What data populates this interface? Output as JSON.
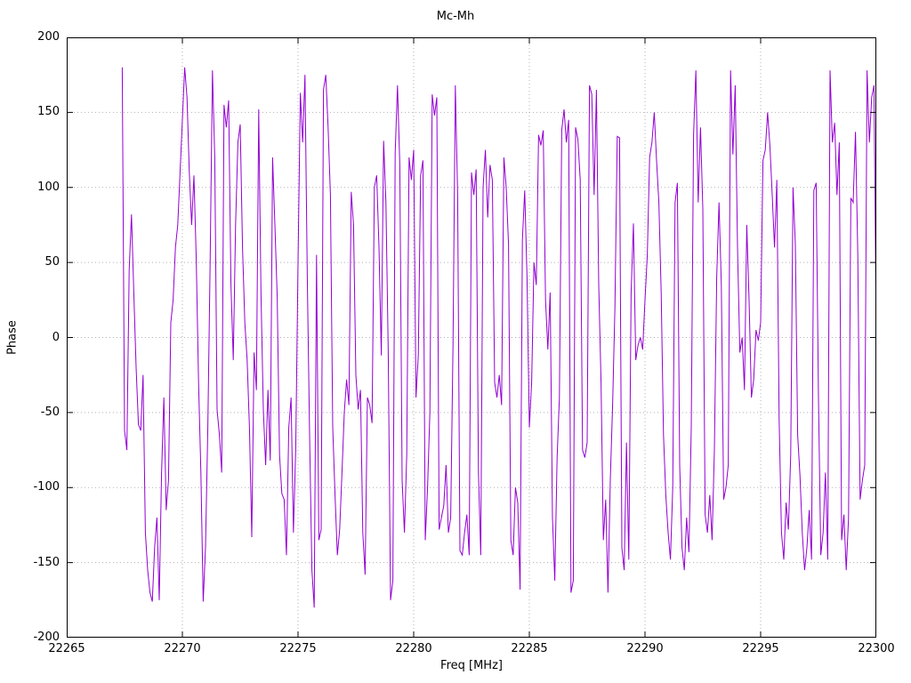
{
  "chart_data": {
    "type": "line",
    "title": "Mc-Mh",
    "xlabel": "Freq [MHz]",
    "ylabel": "Phase",
    "xlim": [
      22265,
      22300
    ],
    "ylim": [
      -200,
      200
    ],
    "x_ticks": [
      22265,
      22270,
      22275,
      22280,
      22285,
      22290,
      22295,
      22300
    ],
    "y_ticks": [
      -200,
      -150,
      -100,
      -50,
      0,
      50,
      100,
      150,
      200
    ],
    "grid": "dotted",
    "legend_position": "none",
    "line_color": "#9400d3",
    "background_color": "#ffffff",
    "series": [
      {
        "name": "Mc-Mh phase",
        "x_start": 22267.4,
        "x_step": 0.1,
        "phase_deg": [
          180,
          -62,
          -75,
          45,
          82,
          30,
          -20,
          -58,
          -62,
          -25,
          -130,
          -155,
          -170,
          -176,
          -140,
          -120,
          -175,
          -90,
          -40,
          -115,
          -95,
          10,
          25,
          60,
          75,
          110,
          145,
          180,
          160,
          110,
          75,
          108,
          52,
          -30,
          -90,
          -176,
          -140,
          -60,
          50,
          178,
          120,
          -48,
          -65,
          -90,
          155,
          140,
          158,
          35,
          -15,
          75,
          130,
          142,
          60,
          10,
          -15,
          -60,
          -133,
          -10,
          -35,
          152,
          28,
          -48,
          -85,
          -35,
          -82,
          120,
          75,
          27,
          -78,
          -104,
          -108,
          -145,
          -60,
          -40,
          -130,
          -75,
          50,
          163,
          130,
          175,
          40,
          -65,
          -155,
          -180,
          55,
          -135,
          -128,
          165,
          175,
          140,
          95,
          -60,
          -105,
          -145,
          -128,
          -90,
          -50,
          -28,
          -45,
          97,
          75,
          -25,
          -48,
          -35,
          -130,
          -158,
          -40,
          -45,
          -57,
          100,
          108,
          60,
          -12,
          131,
          90,
          -10,
          -175,
          -162,
          123,
          168,
          115,
          -95,
          -130,
          -78,
          120,
          105,
          125,
          -40,
          -12,
          108,
          118,
          -135,
          -100,
          -50,
          162,
          148,
          160,
          -128,
          -120,
          -112,
          -85,
          -130,
          -120,
          -5,
          168,
          95,
          -142,
          -145,
          -130,
          -118,
          -145,
          110,
          95,
          112,
          -90,
          -145,
          100,
          125,
          80,
          115,
          105,
          -30,
          -40,
          -25,
          -45,
          120,
          100,
          62,
          -135,
          -145,
          -100,
          -110,
          -168,
          65,
          98,
          40,
          -60,
          -30,
          50,
          35,
          135,
          128,
          138,
          25,
          -8,
          30,
          -120,
          -162,
          -80,
          -40,
          138,
          152,
          130,
          145,
          -170,
          -162,
          140,
          132,
          105,
          -75,
          -80,
          -70,
          168,
          162,
          95,
          165,
          35,
          -30,
          -135,
          -108,
          -170,
          -95,
          -45,
          20,
          134,
          133,
          -140,
          -155,
          -70,
          -148,
          30,
          76,
          -15,
          -5,
          0,
          -8,
          25,
          55,
          120,
          130,
          150,
          118,
          90,
          30,
          -65,
          -105,
          -130,
          -148,
          -100,
          90,
          103,
          -85,
          -140,
          -155,
          -120,
          -143,
          -60,
          135,
          178,
          90,
          140,
          86,
          -118,
          -130,
          -105,
          -135,
          -75,
          40,
          90,
          35,
          -108,
          -100,
          -85,
          178,
          122,
          168,
          60,
          -10,
          0,
          -35,
          75,
          25,
          -40,
          -28,
          5,
          -2,
          10,
          118,
          125,
          150,
          128,
          95,
          60,
          105,
          -55,
          -130,
          -148,
          -110,
          -128,
          -78,
          100,
          62,
          -65,
          -92,
          -130,
          -155,
          -140,
          -115,
          -148,
          98,
          103,
          -40,
          -145,
          -130,
          -90,
          -148,
          178,
          130,
          143,
          95,
          130,
          -135,
          -118,
          -155,
          -120,
          93,
          90,
          137,
          55,
          -108,
          -95,
          -85,
          178,
          130,
          160,
          168,
          0
        ]
      }
    ]
  }
}
